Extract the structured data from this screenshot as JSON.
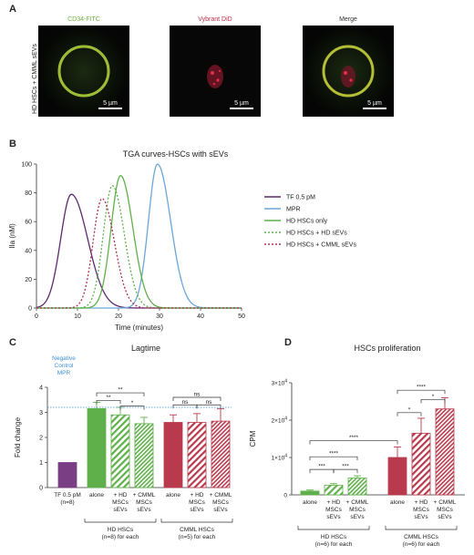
{
  "panel_a": {
    "letter": "A",
    "row_label": "HD HSCs + CMML sEVs",
    "images": [
      {
        "title": "CD34-FITC",
        "title_color": "#6db33f",
        "scale": "5 µm"
      },
      {
        "title": "Vybrant DiD",
        "title_color": "#c0304a",
        "scale": "5 µm"
      },
      {
        "title": "Merge",
        "title_color": "#333333",
        "scale": "5 µm"
      }
    ]
  },
  "panel_b": {
    "letter": "B"
  },
  "panel_c": {
    "letter": "C",
    "annotation": "Negative Control MPR",
    "annotation_lines": [
      "Negative",
      "Control",
      "MPR"
    ]
  },
  "panel_d": {
    "letter": "D"
  },
  "chart_data": [
    {
      "type": "line",
      "title": "TGA curves-HSCs with sEVs",
      "xlabel": "Time (minutes)",
      "ylabel": "IIa (nM)",
      "xlim": [
        0,
        50
      ],
      "ylim": [
        0,
        100
      ],
      "xticks": [
        0,
        10,
        20,
        30,
        40,
        50
      ],
      "yticks": [
        0,
        20,
        40,
        60,
        80,
        100
      ],
      "legend_position": "right",
      "series": [
        {
          "name": "TF 0.5 pM",
          "color": "#5b2a6e",
          "dash": "solid",
          "peak_x": 8.5,
          "peak_y": 79,
          "sigma_left": 2.6,
          "sigma_right": 4.0
        },
        {
          "name": "MPR",
          "color": "#6aa7d8",
          "dash": "solid",
          "peak_x": 29.5,
          "peak_y": 100,
          "sigma_left": 2.2,
          "sigma_right": 3.2
        },
        {
          "name": "HD HSCs only",
          "color": "#5fb04a",
          "dash": "solid",
          "peak_x": 20.5,
          "peak_y": 92,
          "sigma_left": 2.3,
          "sigma_right": 3.0
        },
        {
          "name": "HD HSCs + HD sEVs",
          "color": "#5fb04a",
          "dash": "dot",
          "peak_x": 18.5,
          "peak_y": 85,
          "sigma_left": 2.2,
          "sigma_right": 2.9
        },
        {
          "name": "HD HSCs + CMML sEVs",
          "color": "#b03050",
          "dash": "dot",
          "peak_x": 16.0,
          "peak_y": 76,
          "sigma_left": 2.2,
          "sigma_right": 3.0
        }
      ]
    },
    {
      "type": "bar",
      "title": "Lagtime",
      "ylabel": "Fold change",
      "ylim": [
        0,
        4
      ],
      "yticks": [
        0,
        1,
        2,
        3,
        4
      ],
      "reference_line": {
        "value": 3.2,
        "label": "Negative Control MPR"
      },
      "bars": [
        {
          "label": "TF 0.5 pM (n=8)",
          "label_lines": [
            "TF 0.5 pM",
            "(n=8)"
          ],
          "value": 1.0,
          "error": 0,
          "color": "#7a3e84",
          "pattern": "solid"
        },
        {
          "label": "alone",
          "label_lines": [
            "alone"
          ],
          "value": 3.15,
          "error": 0.25,
          "color": "#5fb04a",
          "pattern": "solid"
        },
        {
          "label": "+ HD MSCs sEVs",
          "label_lines": [
            "+ HD",
            "MSCs",
            "sEVs"
          ],
          "value": 2.9,
          "error": 0.3,
          "color": "#5fb04a",
          "pattern": "diag-light"
        },
        {
          "label": "+ CMML MSCs sEVs",
          "label_lines": [
            "+ CMML",
            "MSCs",
            "sEVs"
          ],
          "value": 2.55,
          "error": 0.25,
          "color": "#5fb04a",
          "pattern": "diag-dense"
        },
        {
          "label": "alone",
          "label_lines": [
            "alone"
          ],
          "value": 2.6,
          "error": 0.3,
          "color": "#b83a4c",
          "pattern": "solid"
        },
        {
          "label": "+ HD MSCs sEVs",
          "label_lines": [
            "+ HD",
            "MSCs",
            "sEVs"
          ],
          "value": 2.6,
          "error": 0.35,
          "color": "#b83a4c",
          "pattern": "diag-light"
        },
        {
          "label": "+ CMML MSCs sEVs",
          "label_lines": [
            "+ CMML",
            "MSCs",
            "sEVs"
          ],
          "value": 2.65,
          "error": 0.5,
          "color": "#b83a4c",
          "pattern": "diag-dense"
        }
      ],
      "groups": [
        {
          "label": "HD HSCs (n=8) for each",
          "lines": [
            "HD HSCs",
            "(n=8) for each"
          ],
          "from": 1,
          "to": 3
        },
        {
          "label": "CMML HSCs (n=5) for each",
          "lines": [
            "CMML HSCs",
            "(n=5) for each"
          ],
          "from": 4,
          "to": 6
        }
      ],
      "significance": [
        {
          "from": 1,
          "to": 3,
          "label": "**",
          "y": 3.78
        },
        {
          "from": 1,
          "to": 2,
          "label": "**",
          "y": 3.48
        },
        {
          "from": 2,
          "to": 3,
          "label": "*",
          "y": 3.25
        },
        {
          "from": 4,
          "to": 6,
          "label": "ns",
          "y": 3.6
        },
        {
          "from": 4,
          "to": 5,
          "label": "ns",
          "y": 3.3
        },
        {
          "from": 5,
          "to": 6,
          "label": "ns",
          "y": 3.3
        }
      ]
    },
    {
      "type": "bar",
      "title": "HSCs proliferation",
      "ylabel": "CPM",
      "ylim": [
        0,
        30000
      ],
      "yticks": [
        0,
        10000,
        20000,
        30000
      ],
      "ytick_labels": [
        {
          "base": "0",
          "exp": ""
        },
        {
          "base": "1×10",
          "exp": "4"
        },
        {
          "base": "2×10",
          "exp": "4"
        },
        {
          "base": "3×10",
          "exp": "4"
        }
      ],
      "bars": [
        {
          "label": "alone",
          "label_lines": [
            "alone"
          ],
          "value": 1000,
          "error": 300,
          "color": "#5fb04a",
          "pattern": "solid"
        },
        {
          "label": "+ HD MSCs sEVs",
          "label_lines": [
            "+ HD",
            "MSCs",
            "sEVs"
          ],
          "value": 2600,
          "error": 400,
          "color": "#5fb04a",
          "pattern": "diag-light"
        },
        {
          "label": "+ CMML MSCs sEVs",
          "label_lines": [
            "+ CMML",
            "MSCs",
            "sEVs"
          ],
          "value": 4500,
          "error": 600,
          "color": "#5fb04a",
          "pattern": "diag-dense"
        },
        {
          "label": "alone",
          "label_lines": [
            "alone"
          ],
          "value": 10000,
          "error": 2800,
          "color": "#b83a4c",
          "pattern": "solid"
        },
        {
          "label": "+ HD MSCs sEVs",
          "label_lines": [
            "+ HD",
            "MSCs",
            "sEVs"
          ],
          "value": 16500,
          "error": 4000,
          "color": "#b83a4c",
          "pattern": "diag-light"
        },
        {
          "label": "+ CMML MSCs sEVs",
          "label_lines": [
            "+ CMML",
            "MSCs",
            "sEVs"
          ],
          "value": 23000,
          "error": 3000,
          "color": "#b83a4c",
          "pattern": "diag-dense"
        }
      ],
      "groups": [
        {
          "label": "HD HSCs (n=6) for each",
          "lines": [
            "HD HSCs",
            "(n=6) for each"
          ],
          "from": 0,
          "to": 2
        },
        {
          "label": "CMML HSCs (n=6) for each",
          "lines": [
            "CMML HSCs",
            "(n=6) for each"
          ],
          "from": 3,
          "to": 5
        }
      ],
      "significance": [
        {
          "from": 3,
          "to": 5,
          "label": "****",
          "y": 28000
        },
        {
          "from": 4,
          "to": 5,
          "label": "*",
          "y": 25500
        },
        {
          "from": 3,
          "to": 4,
          "label": "*",
          "y": 22000
        },
        {
          "from": 0,
          "to": 3,
          "label": "****",
          "y": 14500
        },
        {
          "from": 0,
          "to": 2,
          "label": "****",
          "y": 10200
        },
        {
          "from": 0,
          "to": 1,
          "label": "***",
          "y": 6800
        },
        {
          "from": 1,
          "to": 2,
          "label": "***",
          "y": 6800
        }
      ]
    }
  ]
}
